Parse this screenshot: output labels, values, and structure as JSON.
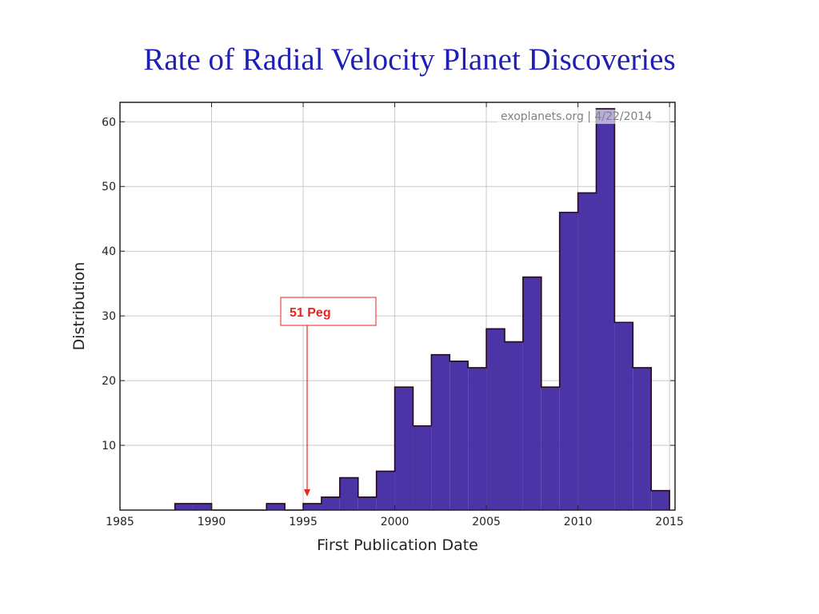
{
  "slide": {
    "title": "Rate of Radial Velocity Planet Discoveries"
  },
  "chart_data": {
    "type": "bar",
    "subtype": "step-histogram",
    "xlabel": "First Publication Date",
    "ylabel": "Distribution",
    "xlim": [
      1985,
      2015.3
    ],
    "ylim": [
      0,
      63
    ],
    "xticks": [
      1985,
      1990,
      1995,
      2000,
      2005,
      2010,
      2015
    ],
    "yticks": [
      10,
      20,
      30,
      40,
      50,
      60
    ],
    "grid": true,
    "bin_width": 1,
    "bins": [
      {
        "x": 1988,
        "value": 1
      },
      {
        "x": 1989,
        "value": 1
      },
      {
        "x": 1993,
        "value": 1
      },
      {
        "x": 1995,
        "value": 1
      },
      {
        "x": 1996,
        "value": 2
      },
      {
        "x": 1997,
        "value": 5
      },
      {
        "x": 1998,
        "value": 2
      },
      {
        "x": 1999,
        "value": 6
      },
      {
        "x": 2000,
        "value": 19
      },
      {
        "x": 2001,
        "value": 13
      },
      {
        "x": 2002,
        "value": 24
      },
      {
        "x": 2003,
        "value": 23
      },
      {
        "x": 2004,
        "value": 22
      },
      {
        "x": 2005,
        "value": 28
      },
      {
        "x": 2006,
        "value": 26
      },
      {
        "x": 2007,
        "value": 36
      },
      {
        "x": 2008,
        "value": 19
      },
      {
        "x": 2009,
        "value": 46
      },
      {
        "x": 2010,
        "value": 49
      },
      {
        "x": 2011,
        "value": 62
      },
      {
        "x": 2012,
        "value": 29
      },
      {
        "x": 2013,
        "value": 22
      },
      {
        "x": 2014,
        "value": 3
      }
    ],
    "fill_color": "#4b35a6",
    "edge_color": "#2a0a1a",
    "watermark": "exoplanets.org | 4/22/2014",
    "annotation": {
      "text": "51 Peg",
      "x": 1995,
      "color": "#e5261f"
    }
  }
}
